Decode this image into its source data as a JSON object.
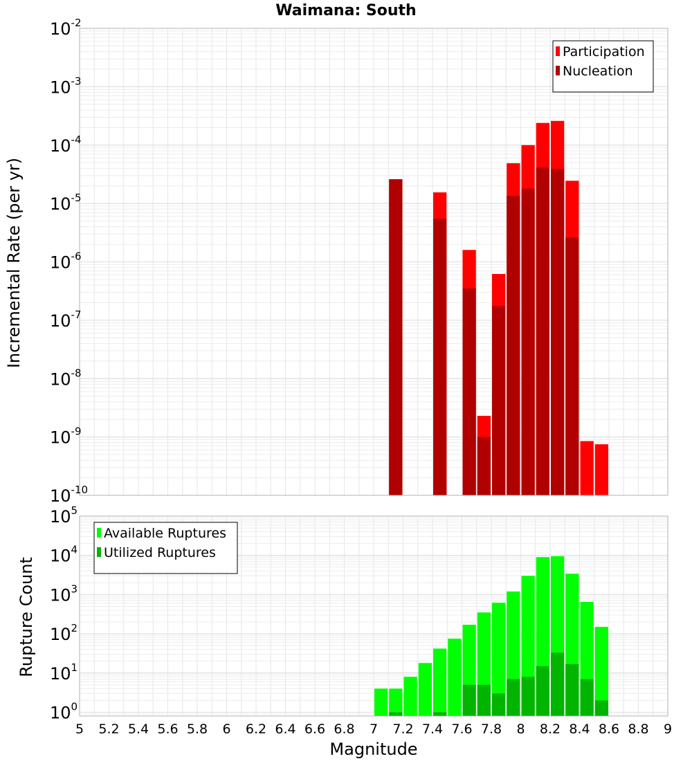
{
  "chart_data": [
    {
      "type": "bar",
      "title": "Waimana: South",
      "ylabel": "Incremental Rate (per yr)",
      "xlabel": "",
      "yscale": "log",
      "ylim": [
        1e-10,
        0.01
      ],
      "xlim": [
        5,
        9
      ],
      "bar_width": 0.1,
      "y_ticks": [
        {
          "base": "10",
          "exp": "-10"
        },
        {
          "base": "10",
          "exp": "-9"
        },
        {
          "base": "10",
          "exp": "-8"
        },
        {
          "base": "10",
          "exp": "-7"
        },
        {
          "base": "10",
          "exp": "-6"
        },
        {
          "base": "10",
          "exp": "-5"
        },
        {
          "base": "10",
          "exp": "-4"
        },
        {
          "base": "10",
          "exp": "-3"
        },
        {
          "base": "10",
          "exp": "-2"
        }
      ],
      "grid": true,
      "legend_position": "top-right",
      "series": [
        {
          "name": "Participation",
          "color": "#ff0000",
          "x": [
            7.15,
            7.45,
            7.65,
            7.75,
            7.85,
            7.95,
            8.05,
            8.15,
            8.25,
            8.35,
            8.45,
            8.55
          ],
          "values": [
            2.6e-05,
            1.55e-05,
            1.6e-06,
            2.3e-09,
            6.2e-07,
            4.9e-05,
            0.0001,
            0.00024,
            0.00026,
            2.45e-05,
            8.5e-10,
            7.5e-10
          ]
        },
        {
          "name": "Nucleation",
          "color": "#b00000",
          "x": [
            7.15,
            7.45,
            7.65,
            7.75,
            7.85,
            7.95,
            8.05,
            8.15,
            8.25,
            8.35
          ],
          "values": [
            2.6e-05,
            5.5e-06,
            3.5e-07,
            1e-09,
            1.75e-07,
            1.35e-05,
            1.8e-05,
            4.1e-05,
            3.9e-05,
            2.6e-06
          ]
        }
      ]
    },
    {
      "type": "bar",
      "title": "",
      "ylabel": "Rupture Count",
      "xlabel": "Magnitude",
      "yscale": "log",
      "ylim": [
        0.8,
        100000.0
      ],
      "xlim": [
        5,
        9
      ],
      "bar_width": 0.1,
      "x_tick_labels": [
        "5",
        "5.2",
        "5.4",
        "5.6",
        "5.8",
        "6",
        "6.2",
        "6.4",
        "6.6",
        "6.8",
        "7",
        "7.2",
        "7.4",
        "7.6",
        "7.8",
        "8",
        "8.2",
        "8.4",
        "8.6",
        "8.8",
        "9"
      ],
      "y_ticks": [
        {
          "base": "10",
          "exp": "0"
        },
        {
          "base": "10",
          "exp": "1"
        },
        {
          "base": "10",
          "exp": "2"
        },
        {
          "base": "10",
          "exp": "3"
        },
        {
          "base": "10",
          "exp": "4"
        },
        {
          "base": "10",
          "exp": "5"
        }
      ],
      "grid": true,
      "legend_position": "top-left",
      "series": [
        {
          "name": "Available Ruptures",
          "color": "#00ff00",
          "x": [
            7.05,
            7.15,
            7.25,
            7.35,
            7.45,
            7.55,
            7.65,
            7.75,
            7.85,
            7.95,
            8.05,
            8.15,
            8.25,
            8.35,
            8.45,
            8.55
          ],
          "values": [
            4,
            4,
            8,
            18,
            42,
            75,
            170,
            350,
            620,
            1200,
            3000,
            9000,
            9500,
            3400,
            650,
            150
          ]
        },
        {
          "name": "Utilized Ruptures",
          "color": "#00b400",
          "x": [
            7.15,
            7.45,
            7.65,
            7.75,
            7.85,
            7.95,
            8.05,
            8.15,
            8.25,
            8.35,
            8.45,
            8.55
          ],
          "values": [
            1,
            1,
            5,
            5,
            3,
            7,
            8,
            15,
            33,
            17,
            7,
            2
          ]
        }
      ]
    }
  ]
}
